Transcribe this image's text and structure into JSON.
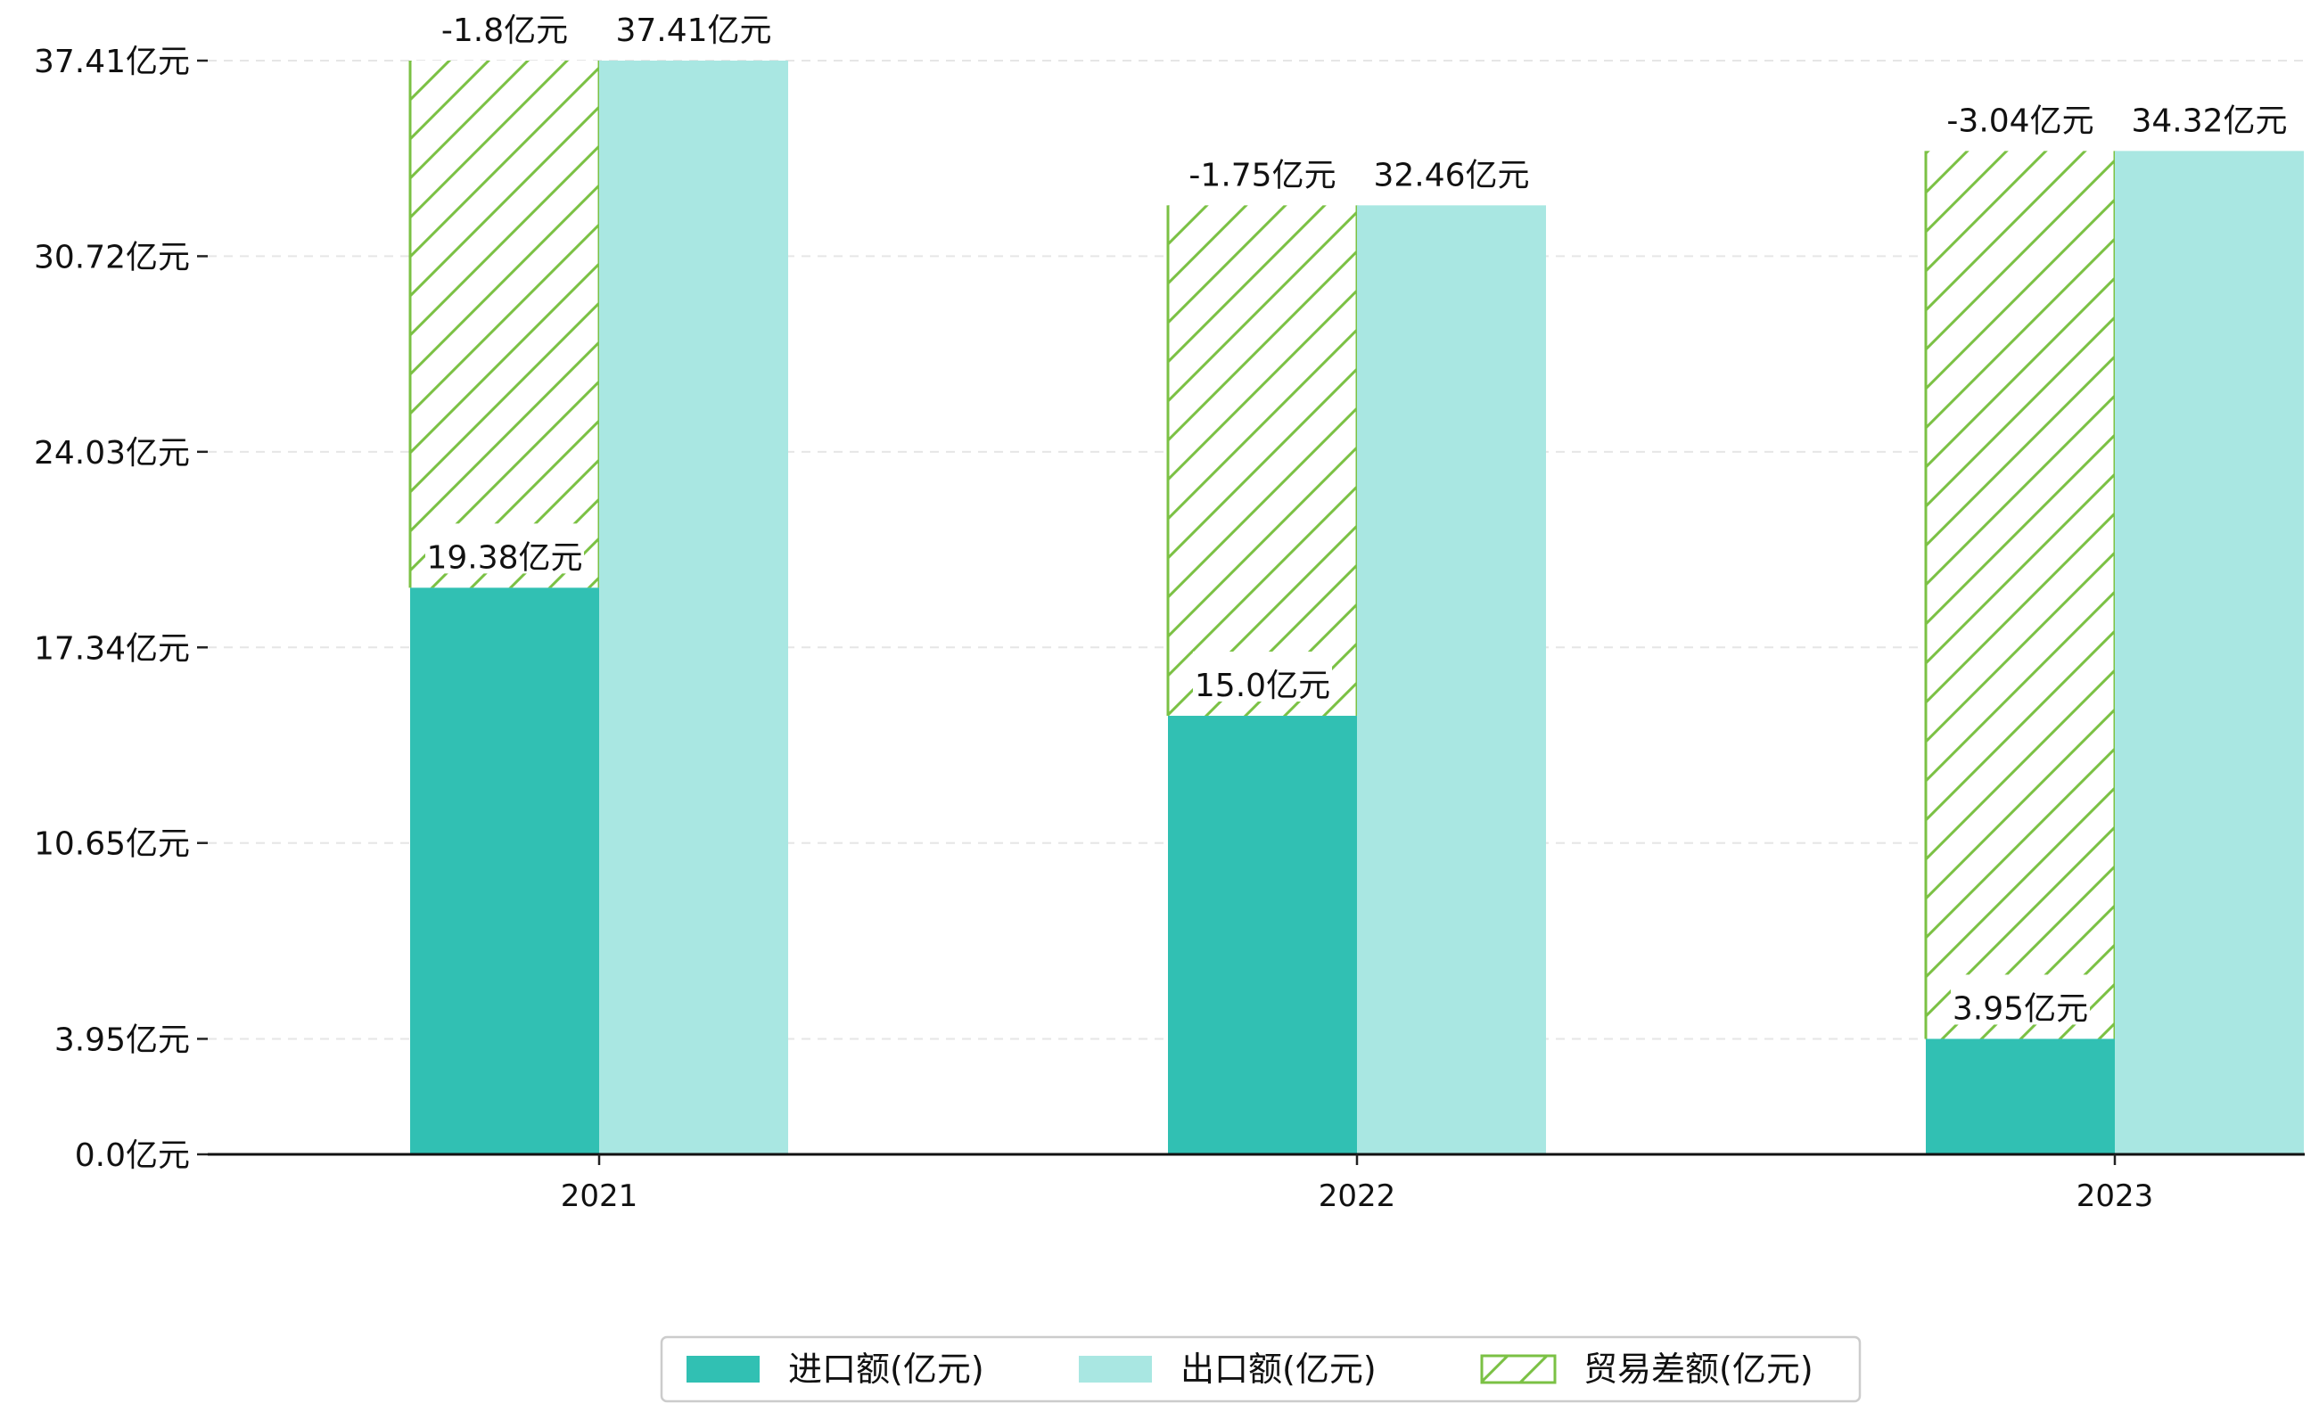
{
  "chart_data": {
    "type": "bar",
    "title": "",
    "xlabel": "",
    "ylabel": "",
    "unit_suffix": "亿元",
    "categories": [
      "2021",
      "2022",
      "2023"
    ],
    "series": [
      {
        "name": "进口额(亿元)",
        "key": "import",
        "color": "#31C0B3",
        "values": [
          19.38,
          15.0,
          3.95
        ]
      },
      {
        "name": "出口额(亿元)",
        "key": "export",
        "color": "#A9E7E2",
        "values": [
          37.41,
          32.46,
          34.32
        ]
      },
      {
        "name": "贸易差额(亿元)",
        "key": "balance",
        "color": "#7BC144",
        "pattern": "hatch",
        "values": [
          -1.8,
          -1.75,
          -3.04
        ]
      }
    ],
    "bar_labels": {
      "import": [
        "19.38亿元",
        "15.0亿元",
        "3.95亿元"
      ],
      "export": [
        "37.41亿元",
        "32.46亿元",
        "34.32亿元"
      ],
      "balance": [
        "-1.8亿元",
        "-1.75亿元",
        "-3.04亿元"
      ]
    },
    "yticks": [
      0.0,
      3.95,
      10.65,
      17.34,
      24.03,
      30.72,
      37.41
    ],
    "ytick_labels": [
      "0.0亿元",
      "3.95亿元",
      "10.65亿元",
      "17.34亿元",
      "24.03亿元",
      "30.72亿元",
      "37.41亿元"
    ],
    "ylim": [
      0,
      37.41
    ],
    "grid": "horizontal dashed",
    "legend_position": "bottom-center"
  }
}
